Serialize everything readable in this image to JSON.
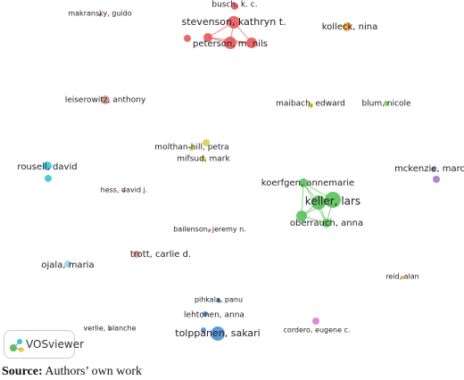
{
  "nodes": [
    {
      "label": "busch, k. c.",
      "color": "#e8595b"
    },
    {
      "label": "makransky, guido",
      "color": "#e8595b"
    },
    {
      "label": "stevenson, kathryn t.",
      "color": "#e8595b"
    },
    {
      "label": "peterson, m. nils",
      "color": "#e8595b"
    },
    {
      "label": "kolleck, nina",
      "color": "#f0a23c"
    },
    {
      "label": "leiserowitz, anthony",
      "color": "#d99a8c"
    },
    {
      "label": "maibach, edward",
      "color": "#d8d24a"
    },
    {
      "label": "blum, nicole",
      "color": "#7ccc5a"
    },
    {
      "label": "molthan-hill, petra",
      "color": "#d8d24a"
    },
    {
      "label": "mifsud, mark",
      "color": "#d8d24a"
    },
    {
      "label": "rousell, david",
      "color": "#3cc3d6"
    },
    {
      "label": "hess, david j.",
      "color": "#e8595b"
    },
    {
      "label": "koerfgen, annemarie",
      "color": "#58c25a"
    },
    {
      "label": "keller, lars",
      "color": "#58c25a"
    },
    {
      "label": "mckenzie, marcia",
      "color": "#a67ad6"
    },
    {
      "label": "oberrauch, anna",
      "color": "#58c25a"
    },
    {
      "label": "bailenson, jeremy n.",
      "color": "#e8595b"
    },
    {
      "label": "trott, carlie d.",
      "color": "#e0a294"
    },
    {
      "label": "ojala, maria",
      "color": "#9ad4ea"
    },
    {
      "label": "reid, alan",
      "color": "#f0a23c"
    },
    {
      "label": "pihkala, panu",
      "color": "#4b8fd6"
    },
    {
      "label": "lehtonen, anna",
      "color": "#4b8fd6"
    },
    {
      "label": "tolppanen, sakari",
      "color": "#4b8fd6"
    },
    {
      "label": "verlie, blanche",
      "color": "#e8595b"
    },
    {
      "label": "cordero, eugene c.",
      "color": "#e07ad6"
    }
  ],
  "logo": "VOSviewer",
  "caption": {
    "bold": "Source:",
    "text": "Authors’ own work"
  }
}
